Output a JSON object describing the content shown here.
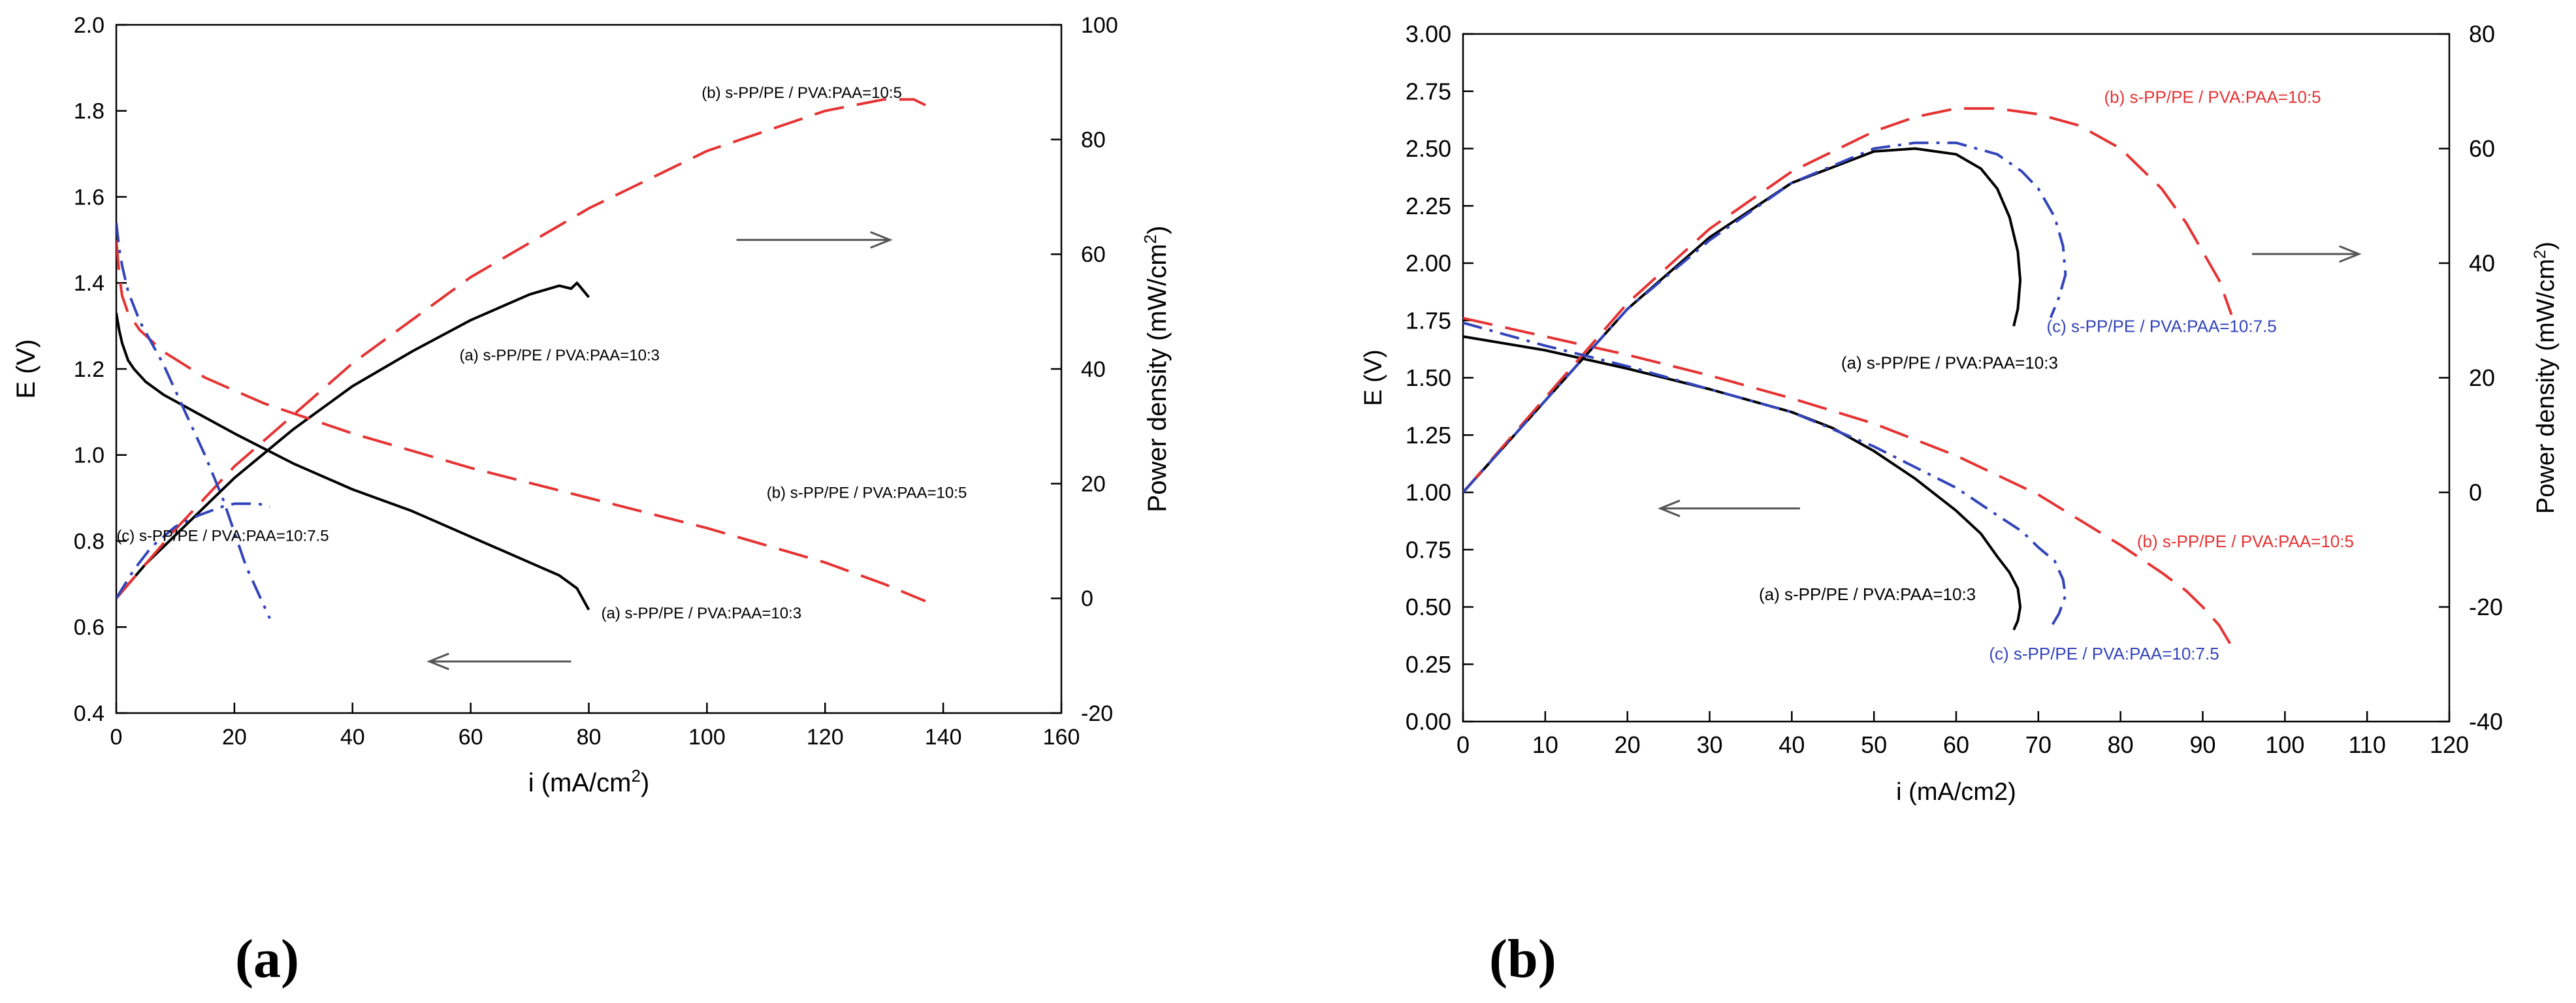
{
  "figure": {
    "panel_labels": [
      "(a)",
      "(b)"
    ]
  },
  "chart_data": [
    {
      "type": "line",
      "panel": "(a)",
      "xlabel_main": "i (mA/cm",
      "xlabel_sup": "2",
      "xlabel_end": ")",
      "ylabel": "E (V)",
      "y2label_main": "Power density (mW/cm",
      "y2label_sup": "2",
      "y2label_end": ")",
      "xlim": [
        0,
        160
      ],
      "ylim": [
        0.4,
        2.0
      ],
      "y2lim": [
        -20,
        100
      ],
      "xticks": [
        0,
        20,
        40,
        60,
        80,
        100,
        120,
        140,
        160
      ],
      "xtick_labels": [
        "0",
        "20",
        "40",
        "60",
        "80",
        "100",
        "120",
        "140",
        "160"
      ],
      "yticks": [
        0.4,
        0.6,
        0.8,
        1.0,
        1.2,
        1.4,
        1.6,
        1.8,
        2.0
      ],
      "ytick_labels": [
        "0.4",
        "0.6",
        "0.8",
        "1.0",
        "1.2",
        "1.4",
        "1.6",
        "1.8",
        "2.0"
      ],
      "y2ticks": [
        -20,
        0,
        20,
        40,
        60,
        80,
        100
      ],
      "y2tick_labels": [
        "-20",
        "0",
        "20",
        "40",
        "60",
        "80",
        "100"
      ],
      "arrows": [
        {
          "from": [
            105,
            1.5
          ],
          "to": [
            131,
            1.5
          ],
          "color": "#555555"
        },
        {
          "from": [
            77,
            0.52
          ],
          "to": [
            53,
            0.52
          ],
          "color": "#555555"
        }
      ],
      "series": [
        {
          "name": "(a) s-PP/PE / PVA:PAA=10:3",
          "kind": "E",
          "color": "#000000",
          "dash": "solid",
          "x": [
            0,
            0.5,
            1,
            2,
            3,
            5,
            8,
            12,
            20,
            30,
            40,
            50,
            60,
            70,
            75,
            78,
            80
          ],
          "y": [
            1.33,
            1.29,
            1.26,
            1.22,
            1.2,
            1.17,
            1.14,
            1.11,
            1.05,
            0.98,
            0.92,
            0.87,
            0.81,
            0.75,
            0.72,
            0.69,
            0.64
          ]
        },
        {
          "name": "(a) s-PP/PE / PVA:PAA=10:3",
          "kind": "P",
          "color": "#000000",
          "dash": "solid",
          "x": [
            0,
            5,
            10,
            20,
            30,
            40,
            50,
            60,
            70,
            75,
            77,
            78,
            80
          ],
          "y": [
            0,
            6,
            11,
            21,
            29.5,
            37,
            43,
            48.5,
            53,
            54.5,
            54,
            55,
            52.5
          ]
        },
        {
          "name": "(b) s-PP/PE / PVA:PAA=10:5",
          "kind": "E",
          "color": "#e53333",
          "dash": "long",
          "x": [
            0,
            0.5,
            1,
            2,
            4,
            8,
            15,
            25,
            40,
            60,
            80,
            100,
            120,
            130,
            137
          ],
          "y": [
            1.5,
            1.42,
            1.37,
            1.33,
            1.29,
            1.24,
            1.18,
            1.12,
            1.05,
            0.97,
            0.9,
            0.83,
            0.75,
            0.7,
            0.66
          ]
        },
        {
          "name": "(b) s-PP/PE / PVA:PAA=10:5",
          "kind": "P",
          "color": "#e53333",
          "dash": "long",
          "x": [
            0,
            5,
            10,
            20,
            40,
            60,
            80,
            100,
            120,
            130,
            135,
            137
          ],
          "y": [
            0,
            6,
            12,
            23,
            41,
            56,
            68,
            78,
            85,
            87,
            87,
            86
          ]
        },
        {
          "name": "(c) s-PP/PE / PVA:PAA=10:7.5",
          "kind": "E",
          "color": "#3344bb",
          "dash": "dashdot",
          "x": [
            0,
            0.5,
            1,
            2,
            4,
            6,
            8,
            10,
            12,
            15,
            18,
            20,
            22,
            24,
            26
          ],
          "y": [
            1.54,
            1.48,
            1.44,
            1.38,
            1.31,
            1.26,
            1.21,
            1.15,
            1.09,
            1.0,
            0.9,
            0.82,
            0.74,
            0.68,
            0.62
          ]
        },
        {
          "name": "(c) s-PP/PE / PVA:PAA=10:7.5",
          "kind": "P",
          "color": "#3344bb",
          "dash": "dashdot",
          "x": [
            0,
            3,
            6,
            10,
            14,
            18,
            20,
            22,
            24,
            26
          ],
          "y": [
            0,
            5,
            9,
            12.5,
            14.5,
            16,
            16.5,
            16.5,
            16.5,
            16
          ]
        }
      ],
      "annotations": [
        {
          "text": "(b) s-PP/PE / PVA:PAA=10:5",
          "at": [
            133,
            1.83
          ],
          "color": "#000000",
          "align": "end"
        },
        {
          "text": "(a) s-PP/PE / PVA:PAA=10:3",
          "at": [
            92,
            1.22
          ],
          "color": "#000000",
          "align": "end"
        },
        {
          "text": "(b) s-PP/PE / PVA:PAA=10:5",
          "at": [
            144,
            0.9
          ],
          "color": "#000000",
          "align": "end"
        },
        {
          "text": "(c) s-PP/PE / PVA:PAA=10:7.5",
          "at": [
            36,
            0.8
          ],
          "color": "#000000",
          "align": "end"
        },
        {
          "text": "(a) s-PP/PE / PVA:PAA=10:3",
          "at": [
            116,
            0.62
          ],
          "color": "#000000",
          "align": "end"
        }
      ]
    },
    {
      "type": "line",
      "panel": "(b)",
      "xlabel_main": "i (mA/cm2)",
      "xlabel_sup": "",
      "xlabel_end": "",
      "ylabel": "E (V)",
      "y2label_main": "Power density (mW/cm",
      "y2label_sup": "2",
      "y2label_end": ")",
      "xlim": [
        0,
        120
      ],
      "ylim": [
        0.0,
        3.0
      ],
      "y2lim": [
        -40,
        80
      ],
      "xticks": [
        0,
        10,
        20,
        30,
        40,
        50,
        60,
        70,
        80,
        90,
        100,
        110,
        120
      ],
      "xtick_labels": [
        "0",
        "10",
        "20",
        "30",
        "40",
        "50",
        "60",
        "70",
        "80",
        "90",
        "100",
        "110",
        "120"
      ],
      "yticks": [
        0,
        0.25,
        0.5,
        0.75,
        1.0,
        1.25,
        1.5,
        1.75,
        2.0,
        2.25,
        2.5,
        2.75,
        3.0
      ],
      "ytick_labels": [
        "0.00",
        "0.25",
        "0.50",
        "0.75",
        "1.00",
        "1.25",
        "1.50",
        "1.75",
        "2.00",
        "2.25",
        "2.50",
        "2.75",
        "3.00"
      ],
      "y2ticks": [
        -40,
        -20,
        0,
        20,
        40,
        60,
        80
      ],
      "y2tick_labels": [
        "-40",
        "-20",
        "0",
        "20",
        "40",
        "60",
        "80"
      ],
      "arrows": [
        {
          "from": [
            96,
            2.04
          ],
          "to": [
            109,
            2.04
          ],
          "color": "#555555"
        },
        {
          "from": [
            41,
            0.93
          ],
          "to": [
            24,
            0.93
          ],
          "color": "#555555"
        }
      ],
      "series": [
        {
          "name": "(a) s-PP/PE / PVA:PAA=10:3",
          "kind": "E",
          "color": "#000000",
          "dash": "solid",
          "x": [
            0,
            10,
            20,
            30,
            40,
            45,
            50,
            55,
            60,
            63,
            65,
            66.5,
            67.5,
            67.8,
            67.5,
            67
          ],
          "y": [
            1.68,
            1.62,
            1.54,
            1.45,
            1.35,
            1.28,
            1.18,
            1.06,
            0.92,
            0.82,
            0.72,
            0.65,
            0.58,
            0.5,
            0.44,
            0.4
          ]
        },
        {
          "name": "(a) s-PP/PE / PVA:PAA=10:3",
          "kind": "P",
          "color": "#000000",
          "dash": "solid",
          "x": [
            0,
            10,
            20,
            30,
            40,
            50,
            55,
            60,
            63,
            65,
            66.5,
            67.5,
            67.8,
            67.5,
            67
          ],
          "y": [
            0,
            16,
            32,
            44.5,
            54,
            59.5,
            60,
            59,
            56.5,
            53,
            48,
            42,
            37,
            32,
            29
          ]
        },
        {
          "name": "(b) s-PP/PE / PVA:PAA=10:5",
          "kind": "E",
          "color": "#e53333",
          "dash": "long",
          "x": [
            0,
            10,
            20,
            30,
            40,
            50,
            60,
            70,
            80,
            85,
            88,
            90,
            92,
            93.5
          ],
          "y": [
            1.76,
            1.68,
            1.6,
            1.51,
            1.41,
            1.3,
            1.16,
            0.99,
            0.77,
            0.65,
            0.57,
            0.5,
            0.42,
            0.33
          ]
        },
        {
          "name": "(b) s-PP/PE / PVA:PAA=10:5",
          "kind": "P",
          "color": "#e53333",
          "dash": "long",
          "x": [
            0,
            10,
            20,
            30,
            40,
            50,
            55,
            60,
            65,
            70,
            75,
            80,
            85,
            88,
            90,
            92,
            93.5
          ],
          "y": [
            0,
            16.5,
            33,
            46,
            56,
            63,
            65.5,
            67,
            67,
            66,
            64,
            60,
            53,
            47,
            42,
            37,
            31
          ]
        },
        {
          "name": "(c) s-PP/PE / PVA:PAA=10:7.5",
          "kind": "E",
          "color": "#3344bb",
          "dash": "dashdot",
          "x": [
            0,
            10,
            20,
            30,
            40,
            50,
            55,
            60,
            65,
            68,
            70,
            72,
            73,
            73.3,
            72.5,
            71.5
          ],
          "y": [
            1.74,
            1.64,
            1.55,
            1.45,
            1.35,
            1.2,
            1.11,
            1.02,
            0.9,
            0.83,
            0.76,
            0.7,
            0.62,
            0.55,
            0.47,
            0.41
          ]
        },
        {
          "name": "(c) s-PP/PE / PVA:PAA=10:7.5",
          "kind": "P",
          "color": "#3344bb",
          "dash": "dashdot",
          "x": [
            0,
            10,
            20,
            30,
            40,
            50,
            55,
            60,
            65,
            68,
            70,
            72,
            73,
            73.3,
            72.5,
            71.5
          ],
          "y": [
            0,
            16,
            32,
            44,
            54,
            60,
            61,
            61,
            59,
            56,
            53,
            48,
            43,
            38,
            34,
            30.5
          ]
        }
      ],
      "annotations": [
        {
          "text": "(b) s-PP/PE / PVA:PAA=10:5",
          "at": [
            78,
            2.7
          ],
          "color": "#e53333",
          "align": "start"
        },
        {
          "text": "(c) s-PP/PE / PVA:PAA=10:7.5",
          "at": [
            71,
            1.7
          ],
          "color": "#3344bb",
          "align": "start"
        },
        {
          "text": "(a) s-PP/PE / PVA:PAA=10:3",
          "at": [
            46,
            1.54
          ],
          "color": "#000000",
          "align": "start"
        },
        {
          "text": "(a) s-PP/PE / PVA:PAA=10:3",
          "at": [
            36,
            0.53
          ],
          "color": "#000000",
          "align": "start"
        },
        {
          "text": "(b) s-PP/PE / PVA:PAA=10:5",
          "at": [
            82,
            0.76
          ],
          "color": "#e53333",
          "align": "start"
        },
        {
          "text": "(c) s-PP/PE / PVA:PAA=10:7.5",
          "at": [
            64,
            0.27
          ],
          "color": "#3344bb",
          "align": "start"
        }
      ]
    }
  ]
}
